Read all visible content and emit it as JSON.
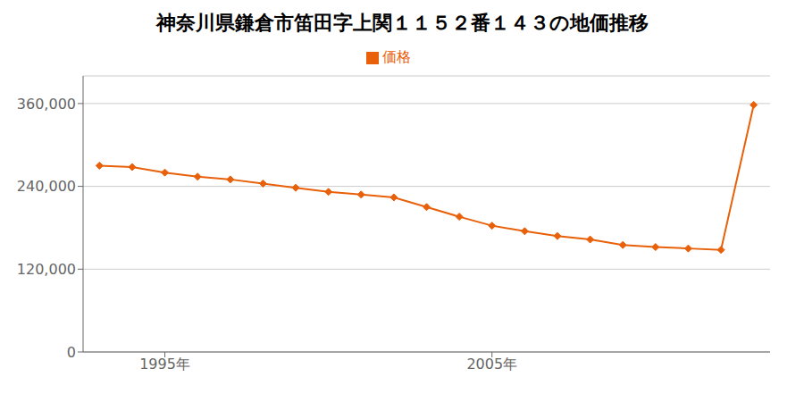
{
  "chart_data": {
    "type": "line",
    "title": "神奈川県鎌倉市笛田字上関１１５２番１４３の地価推移",
    "x": [
      1993,
      1994,
      1995,
      1996,
      1997,
      1998,
      1999,
      2000,
      2001,
      2002,
      2003,
      2004,
      2005,
      2006,
      2007,
      2008,
      2009,
      2010,
      2011,
      2012,
      2013
    ],
    "series": [
      {
        "name": "価格",
        "color": "#e8600a",
        "marker": "diamond",
        "values": [
          270000,
          268000,
          260000,
          254000,
          250000,
          244000,
          238000,
          232000,
          228000,
          224000,
          210000,
          196000,
          183000,
          175000,
          168000,
          163000,
          155000,
          152000,
          150000,
          148000,
          358000
        ]
      }
    ],
    "xlim": [
      1992.5,
      2013.5
    ],
    "xticks": [
      {
        "value": 1995,
        "label": "1995年"
      },
      {
        "value": 2005,
        "label": "2005年"
      }
    ],
    "ylim": [
      0,
      400000
    ],
    "yticks": [
      0,
      {
        "value": 120000,
        "label": "120,000"
      },
      {
        "value": 240000,
        "label": "240,000"
      },
      {
        "value": 360000,
        "label": "360,000"
      }
    ],
    "grid": "y",
    "legend": "top"
  }
}
